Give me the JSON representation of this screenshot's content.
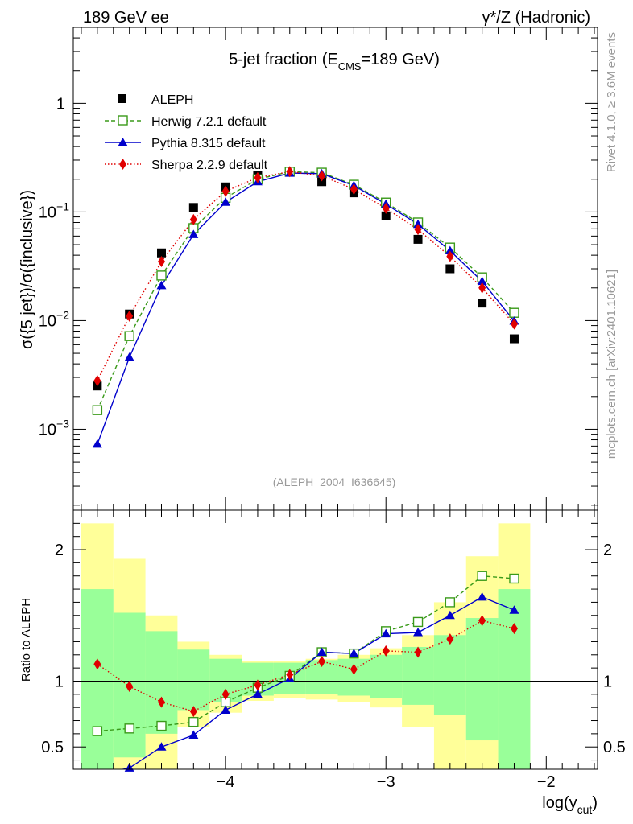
{
  "header": {
    "left": "189 GeV ee",
    "right": "γ*/Z (Hadronic)"
  },
  "side_labels": {
    "rivet": "Rivet 4.1.0, ≥ 3.6M events",
    "site": "mcplots.cern.ch [arXiv:2401.10621]"
  },
  "colors": {
    "data": "#000000",
    "herwig": "#3a9a1a",
    "pythia": "#0000cc",
    "sherpa": "#e00000",
    "band_inner": "#99ff99",
    "band_outer": "#ffff99",
    "watermark": "#999999"
  },
  "chart_data": [
    {
      "id": "main",
      "type": "line",
      "title_pre": "5-jet fraction (E",
      "title_sub": "CMS",
      "title_post": "=189 GeV)",
      "ylabel": "σ({5 jet})/σ({inclusive})",
      "xlabel_main": "log(y",
      "xlabel_sub": "cut",
      "xlabel_close": ")",
      "yscale": "log",
      "ylim": [
        0.00018,
        5
      ],
      "xlim": [
        -4.95,
        -1.68
      ],
      "y_ticks": [
        {
          "v": 0.001,
          "base": "10",
          "exp": "−3"
        },
        {
          "v": 0.01,
          "base": "10",
          "exp": "−2"
        },
        {
          "v": 0.1,
          "base": "10",
          "exp": "−1"
        },
        {
          "v": 1,
          "base": "1",
          "exp": ""
        }
      ],
      "watermark": "(ALEPH_2004_I636645)",
      "legend": [
        {
          "key": "data",
          "label": "ALEPH"
        },
        {
          "key": "herwig",
          "label": "Herwig 7.2.1 default"
        },
        {
          "key": "pythia",
          "label": "Pythia 8.315 default"
        },
        {
          "key": "sherpa",
          "label": "Sherpa 2.2.9 default"
        }
      ],
      "x": [
        -4.8,
        -4.6,
        -4.4,
        -4.2,
        -4.0,
        -3.8,
        -3.6,
        -3.4,
        -3.2,
        -3.0,
        -2.8,
        -2.6,
        -2.4,
        -2.2
      ],
      "series": [
        {
          "key": "data",
          "name": "ALEPH",
          "values": [
            0.0025,
            0.0115,
            0.042,
            0.11,
            0.17,
            0.215,
            0.235,
            0.19,
            0.15,
            0.092,
            0.056,
            0.03,
            0.0145,
            0.0068
          ]
        },
        {
          "key": "herwig",
          "name": "Herwig 7.2.1 default",
          "values": [
            0.0015,
            0.0072,
            0.026,
            0.071,
            0.135,
            0.2,
            0.235,
            0.23,
            0.178,
            0.122,
            0.08,
            0.047,
            0.025,
            0.0118
          ]
        },
        {
          "key": "pythia",
          "name": "Pythia 8.315 default",
          "values": [
            0.00073,
            0.0046,
            0.021,
            0.062,
            0.123,
            0.19,
            0.228,
            0.225,
            0.175,
            0.118,
            0.077,
            0.044,
            0.023,
            0.0099
          ]
        },
        {
          "key": "sherpa",
          "name": "Sherpa 2.2.9 default",
          "values": [
            0.0028,
            0.011,
            0.035,
            0.085,
            0.155,
            0.207,
            0.235,
            0.215,
            0.162,
            0.108,
            0.069,
            0.039,
            0.02,
            0.0093
          ]
        }
      ]
    },
    {
      "id": "ratio",
      "type": "line",
      "ylabel": "Ratio to ALEPH",
      "ylim": [
        0.33,
        2.3
      ],
      "y_ticks": [
        {
          "v": 0.5,
          "label": "0.5"
        },
        {
          "v": 1,
          "label": "1"
        },
        {
          "v": 2,
          "label": "2"
        }
      ],
      "x_ticks": [
        {
          "v": -4,
          "label": "−4"
        },
        {
          "v": -3,
          "label": "−3"
        },
        {
          "v": -2,
          "label": "−2"
        }
      ],
      "band_edges": [
        -4.9,
        -4.7,
        -4.5,
        -4.3,
        -4.1,
        -3.9,
        -3.7,
        -3.5,
        -3.3,
        -3.1,
        -2.9,
        -2.7,
        -2.5,
        -2.3,
        -2.1
      ],
      "band_inner": [
        [
          0.3,
          1.7
        ],
        [
          0.42,
          1.52
        ],
        [
          0.6,
          1.38
        ],
        [
          0.78,
          1.24
        ],
        [
          0.84,
          1.17
        ],
        [
          0.89,
          1.14
        ],
        [
          0.9,
          1.14
        ],
        [
          0.9,
          1.16
        ],
        [
          0.89,
          1.17
        ],
        [
          0.87,
          1.2
        ],
        [
          0.82,
          1.26
        ],
        [
          0.74,
          1.35
        ],
        [
          0.55,
          1.48
        ],
        [
          0.3,
          1.7
        ]
      ],
      "band_outer": [
        [
          0.3,
          2.2
        ],
        [
          0.3,
          1.93
        ],
        [
          0.3,
          1.5
        ],
        [
          0.65,
          1.3
        ],
        [
          0.76,
          1.2
        ],
        [
          0.85,
          1.15
        ],
        [
          0.87,
          1.15
        ],
        [
          0.86,
          1.17
        ],
        [
          0.84,
          1.2
        ],
        [
          0.8,
          1.25
        ],
        [
          0.65,
          1.35
        ],
        [
          0.3,
          1.6
        ],
        [
          0.3,
          1.95
        ],
        [
          0.3,
          2.2
        ]
      ],
      "series": [
        {
          "key": "herwig",
          "values": [
            0.62,
            0.64,
            0.66,
            0.69,
            0.84,
            0.95,
            1.04,
            1.22,
            1.21,
            1.38,
            1.45,
            1.6,
            1.8,
            1.78
          ]
        },
        {
          "key": "pythia",
          "values": [
            0.29,
            0.34,
            0.5,
            0.59,
            0.78,
            0.9,
            1.02,
            1.22,
            1.21,
            1.36,
            1.37,
            1.5,
            1.64,
            1.54
          ]
        },
        {
          "key": "sherpa",
          "values": [
            1.13,
            0.96,
            0.84,
            0.77,
            0.9,
            0.97,
            1.05,
            1.15,
            1.09,
            1.23,
            1.22,
            1.32,
            1.46,
            1.4
          ]
        }
      ]
    }
  ]
}
